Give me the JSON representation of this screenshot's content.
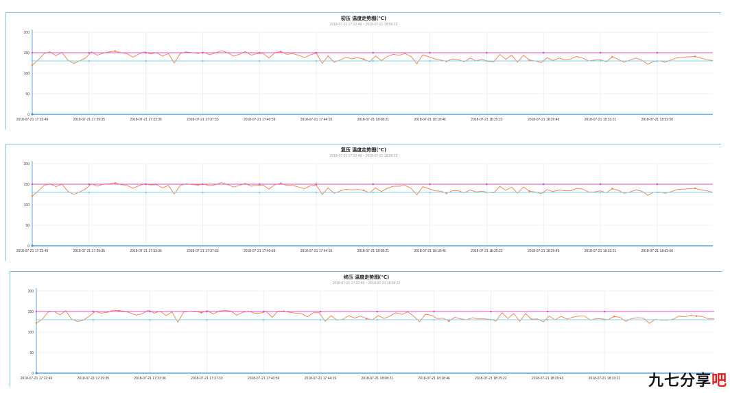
{
  "colors": {
    "temperature": "#f08a5d",
    "upper_limit": "#d94fd1",
    "lower_limit": "#7dd3f0",
    "grid": "#e4e4e4",
    "axis": "#3b8fd4",
    "panel_border": "#79c3ea"
  },
  "watermark": {
    "part1": "九七分享",
    "part2": "吧"
  },
  "chart_data": [
    {
      "type": "line",
      "title": "初压 温度走势图(℃)",
      "subtitle": "2018-07-21 17:22:49 ~ 2018-07-21 18:59:22",
      "ylim": [
        0,
        200
      ],
      "yticks": [
        0,
        50,
        100,
        150,
        200
      ],
      "xticks": [
        "2018-07-21 17:22:49",
        "2018-07-21 17:29:35",
        "2018-07-21 17:33:36",
        "2018-07-21 17:37:33",
        "2018-07-21 17:40:59",
        "2018-07-21 17:44:19",
        "2018-07-21 18:08:21",
        "2018-07-21 18:18:46",
        "2018-07-21 18:25:22",
        "2018-07-21 18:29:43",
        "2018-07-21 18:33:21",
        "2018-07-21 18:52:50"
      ],
      "grid": true,
      "series": [
        {
          "values": [
            120,
            132,
            148,
            152,
            143,
            151,
            132,
            124,
            130,
            137,
            152,
            144,
            149,
            152,
            154,
            150,
            148,
            139,
            147,
            152,
            147,
            150,
            142,
            148,
            125,
            148,
            152,
            150,
            149,
            151,
            145,
            150,
            155,
            150,
            142,
            146,
            153,
            144,
            148,
            149,
            137,
            150,
            153,
            146,
            148,
            144,
            138,
            145,
            149,
            124,
            142,
            127,
            132,
            139,
            135,
            138,
            134,
            128,
            142,
            131,
            141,
            146,
            144,
            148,
            141,
            123,
            145,
            140,
            135,
            132,
            129,
            135,
            133,
            128,
            137,
            130,
            134,
            129,
            128,
            146,
            134,
            144,
            127,
            144,
            132,
            130,
            126,
            138,
            131,
            137,
            133,
            135,
            141,
            137,
            130,
            132,
            133,
            128,
            140,
            134,
            127,
            132,
            137,
            132,
            122,
            129,
            130,
            127,
            133,
            138,
            139,
            140,
            141,
            137,
            133,
            131
          ]
        },
        {
          "values": [
            150,
            150,
            150,
            150,
            150,
            150,
            150,
            150,
            150,
            150,
            150,
            150
          ]
        },
        {
          "values": [
            130,
            130,
            130,
            130,
            130,
            130,
            130,
            130,
            130,
            130,
            130,
            130
          ]
        }
      ]
    },
    {
      "type": "line",
      "title": "复压 温度走势图(℃)",
      "subtitle": "2018-07-21 17:22:49 ~ 2018-07-21 18:59:22",
      "ylim": [
        0,
        200
      ],
      "yticks": [
        0,
        50,
        100,
        150,
        200
      ],
      "xticks": [
        "2018-07-21 17:22:49",
        "2018-07-21 17:29:35",
        "2018-07-21 17:33:36",
        "2018-07-21 17:37:33",
        "2018-07-21 17:40:59",
        "2018-07-21 17:44:19",
        "2018-07-21 18:08:21",
        "2018-07-21 18:18:46",
        "2018-07-21 18:25:22",
        "2018-07-21 18:29:43",
        "2018-07-21 18:33:21",
        "2018-07-21 18:52:50"
      ],
      "grid": true,
      "series": [
        {
          "values": [
            121,
            133,
            147,
            151,
            144,
            150,
            133,
            125,
            131,
            138,
            151,
            145,
            150,
            151,
            153,
            149,
            147,
            140,
            146,
            151,
            148,
            149,
            141,
            147,
            126,
            147,
            151,
            149,
            148,
            150,
            146,
            149,
            154,
            149,
            143,
            147,
            152,
            145,
            147,
            148,
            138,
            149,
            152,
            147,
            147,
            143,
            139,
            146,
            148,
            125,
            141,
            128,
            133,
            138,
            136,
            137,
            135,
            129,
            141,
            132,
            140,
            145,
            145,
            147,
            140,
            124,
            144,
            139,
            134,
            133,
            128,
            134,
            134,
            129,
            136,
            131,
            133,
            130,
            129,
            145,
            135,
            143,
            128,
            143,
            133,
            131,
            127,
            137,
            132,
            136,
            134,
            134,
            140,
            138,
            131,
            131,
            134,
            129,
            139,
            135,
            128,
            131,
            136,
            133,
            123,
            130,
            131,
            128,
            132,
            137,
            138,
            139,
            140,
            136,
            134,
            130
          ]
        },
        {
          "values": [
            150,
            150,
            150,
            150,
            150,
            150,
            150,
            150,
            150,
            150,
            150,
            150
          ]
        },
        {
          "values": [
            130,
            130,
            130,
            130,
            130,
            130,
            130,
            130,
            130,
            130,
            130,
            130
          ]
        }
      ]
    },
    {
      "type": "line",
      "title": "终压 温度走势图(℃)",
      "subtitle": "2018-07-21 17:22:49 ~ 2018-07-21 18:59:22",
      "ylim": [
        0,
        200
      ],
      "yticks": [
        0,
        50,
        100,
        150,
        200
      ],
      "xticks": [
        "2018-07-21 17:22:49",
        "2018-07-21 17:29:35",
        "2018-07-21 17:33:36",
        "2018-07-21 17:37:33",
        "2018-07-21 17:40:59",
        "2018-07-21 17:44:19",
        "2018-07-21 18:08:21",
        "2018-07-21 18:18:46",
        "2018-07-21 18:25:22",
        "2018-07-21 18:29:43",
        "2018-07-21 18:33:21"
      ],
      "grid": true,
      "series": [
        {
          "values": [
            122,
            131,
            149,
            150,
            142,
            152,
            131,
            126,
            129,
            139,
            150,
            146,
            148,
            153,
            152,
            151,
            146,
            141,
            145,
            153,
            146,
            151,
            140,
            149,
            124,
            149,
            150,
            151,
            147,
            152,
            144,
            151,
            153,
            151,
            141,
            148,
            151,
            146,
            146,
            150,
            136,
            151,
            151,
            148,
            146,
            145,
            137,
            147,
            147,
            126,
            140,
            129,
            131,
            140,
            134,
            139,
            133,
            130,
            140,
            133,
            139,
            147,
            143,
            149,
            139,
            125,
            143,
            141,
            133,
            134,
            127,
            136,
            132,
            130,
            135,
            132,
            132,
            131,
            127,
            147,
            133,
            145,
            126,
            145,
            131,
            132,
            125,
            139,
            130,
            138,
            132,
            136,
            139,
            139,
            129,
            133,
            132,
            130,
            138,
            136,
            126,
            133,
            135,
            134,
            121,
            131,
            129,
            129,
            131,
            139,
            137,
            141,
            139,
            138,
            132,
            132
          ]
        },
        {
          "values": [
            150,
            150,
            150,
            150,
            150,
            150,
            150,
            150,
            150,
            150,
            150
          ]
        },
        {
          "values": [
            130,
            130,
            130,
            130,
            130,
            130,
            130,
            130,
            130,
            130,
            130
          ]
        }
      ]
    }
  ]
}
